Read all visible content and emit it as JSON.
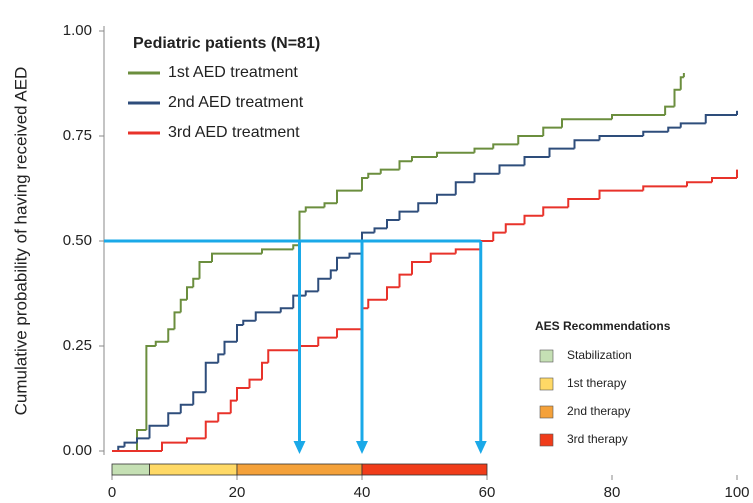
{
  "chart_data": {
    "type": "line",
    "step": "post",
    "title": "Pediatric patients (N=81)",
    "ylabel": "Cumulative probability of having received AED",
    "xlim": [
      0,
      100
    ],
    "ylim": [
      0,
      1
    ],
    "xticks": [
      0,
      20,
      40,
      60,
      80,
      100
    ],
    "yticks": [
      {
        "value": 0,
        "label": "0.00"
      },
      0.25,
      {
        "value": 0.5,
        "label": "0.50"
      },
      0.75,
      {
        "value": 1,
        "label": "1.00"
      }
    ],
    "series": [
      {
        "name": "1st AED treatment",
        "color": "#6b8e3e",
        "x": [
          0,
          4,
          5.5,
          7,
          9,
          10,
          11,
          12,
          13,
          14,
          16,
          24,
          29,
          30,
          31,
          34,
          36,
          40,
          41,
          43,
          46,
          48,
          52,
          58,
          61,
          65,
          69,
          72,
          80,
          88.5,
          90,
          91,
          91.5
        ],
        "values": [
          0,
          0.05,
          0.25,
          0.26,
          0.29,
          0.33,
          0.36,
          0.39,
          0.41,
          0.45,
          0.47,
          0.48,
          0.49,
          0.57,
          0.58,
          0.59,
          0.62,
          0.65,
          0.66,
          0.67,
          0.69,
          0.7,
          0.71,
          0.72,
          0.73,
          0.75,
          0.77,
          0.79,
          0.8,
          0.82,
          0.86,
          0.89,
          0.9
        ]
      },
      {
        "name": "2nd AED treatment",
        "color": "#2e4d7b",
        "x": [
          0,
          1,
          2,
          4,
          6,
          9,
          11,
          13,
          15,
          17,
          18,
          20,
          21,
          23,
          27,
          29,
          31,
          33,
          35,
          36,
          38,
          40,
          42,
          44,
          46,
          49,
          52,
          55,
          58,
          62,
          66,
          70,
          74,
          78,
          85,
          89,
          91,
          95,
          100
        ],
        "values": [
          0,
          0.01,
          0.02,
          0.03,
          0.06,
          0.09,
          0.11,
          0.14,
          0.21,
          0.23,
          0.26,
          0.3,
          0.31,
          0.33,
          0.34,
          0.37,
          0.38,
          0.41,
          0.43,
          0.46,
          0.47,
          0.52,
          0.53,
          0.55,
          0.57,
          0.59,
          0.61,
          0.64,
          0.66,
          0.68,
          0.7,
          0.72,
          0.74,
          0.75,
          0.76,
          0.77,
          0.78,
          0.8,
          0.81
        ]
      },
      {
        "name": "3rd AED treatment",
        "color": "#e8322a",
        "x": [
          0,
          8,
          12,
          15,
          17,
          19,
          20,
          22,
          24,
          25,
          30,
          33,
          36,
          40,
          41,
          44,
          46,
          48,
          51,
          55,
          59,
          61,
          63,
          66,
          69,
          73,
          78,
          85,
          92,
          96,
          100
        ],
        "values": [
          0,
          0.02,
          0.03,
          0.07,
          0.09,
          0.12,
          0.15,
          0.17,
          0.21,
          0.24,
          0.25,
          0.27,
          0.29,
          0.34,
          0.36,
          0.39,
          0.42,
          0.45,
          0.47,
          0.48,
          0.5,
          0.52,
          0.54,
          0.56,
          0.58,
          0.6,
          0.62,
          0.63,
          0.64,
          0.65,
          0.67
        ]
      }
    ],
    "reference": {
      "color": "#1aa9e8",
      "y": 0.5,
      "x": [
        30,
        40,
        59
      ]
    },
    "recommendations": {
      "title": "AES Recommendations",
      "segments": [
        {
          "name": "Stabilization",
          "color": "#c5e0b4",
          "start": 0,
          "end": 6
        },
        {
          "name": "1st therapy",
          "color": "#ffd966",
          "start": 6,
          "end": 20
        },
        {
          "name": "2nd therapy",
          "color": "#f4a13a",
          "start": 20,
          "end": 40
        },
        {
          "name": "3rd therapy",
          "color": "#f03c1a",
          "start": 40,
          "end": 60
        }
      ]
    }
  }
}
